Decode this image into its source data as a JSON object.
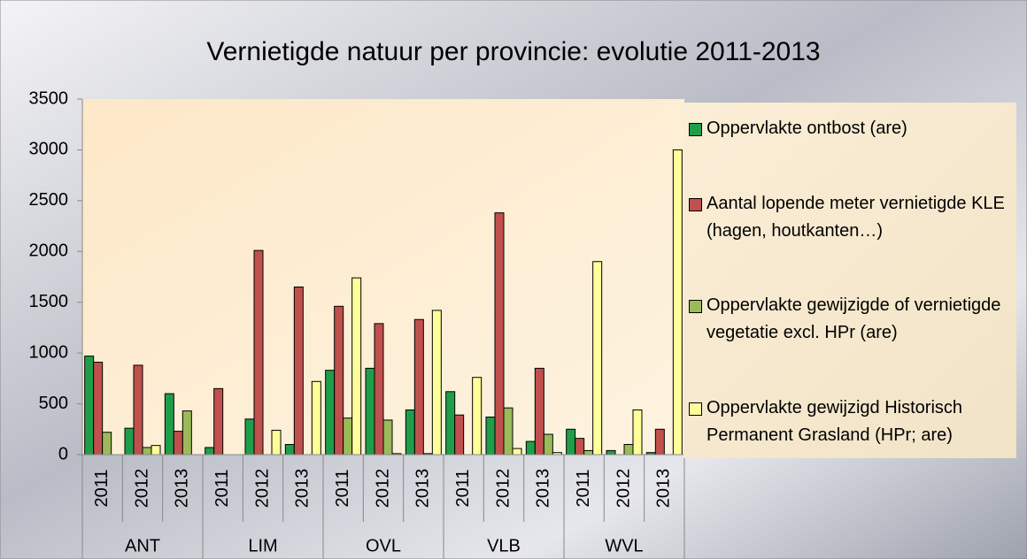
{
  "chart_data": {
    "type": "bar",
    "title": "Vernietigde natuur per provincie: evolutie 2011-2013",
    "categories": [
      "2011",
      "2012",
      "2013",
      "2011",
      "2012",
      "2013",
      "2011",
      "2012",
      "2013",
      "2011",
      "2012",
      "2013",
      "2011",
      "2012",
      "2013"
    ],
    "groups": [
      "ANT",
      "LIM",
      "OVL",
      "VLB",
      "WVL"
    ],
    "series": [
      {
        "name": "Oppervlakte ontbost (are)",
        "color": "#1f9e4a",
        "values": [
          970,
          260,
          600,
          70,
          350,
          100,
          830,
          850,
          440,
          620,
          370,
          130,
          250,
          40,
          20
        ]
      },
      {
        "name": "Aantal lopende meter vernietigde KLE (hagen, houtkanten…)",
        "color": "#c0504d",
        "values": [
          910,
          880,
          230,
          650,
          2010,
          1650,
          1460,
          1290,
          1330,
          390,
          2380,
          850,
          160,
          0,
          250
        ]
      },
      {
        "name": "Oppervlakte gewijzigde of vernietigde vegetatie  excl. HPr (are)",
        "color": "#9bbb59",
        "values": [
          220,
          70,
          430,
          0,
          0,
          0,
          360,
          340,
          10,
          0,
          460,
          200,
          40,
          100,
          0
        ]
      },
      {
        "name": "Oppervlakte gewijzigd Historisch Permanent Grasland (HPr; are)",
        "color": "#ffff99",
        "values": [
          0,
          90,
          0,
          0,
          240,
          720,
          1740,
          10,
          1420,
          760,
          60,
          20,
          1900,
          440,
          3000
        ]
      }
    ],
    "ylim": [
      0,
      3500
    ],
    "yticks": [
      0,
      500,
      1000,
      1500,
      2000,
      2500,
      3000,
      3500
    ],
    "grid": false,
    "legend": "right"
  }
}
